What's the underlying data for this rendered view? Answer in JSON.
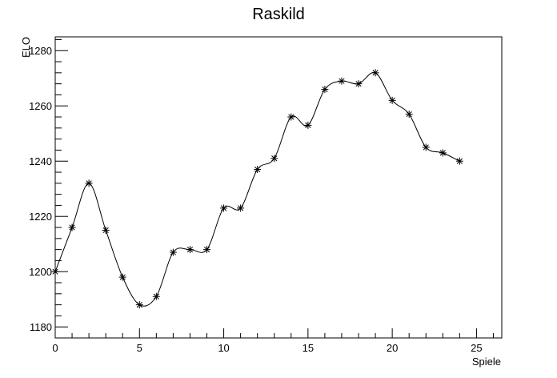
{
  "chart_data": {
    "type": "line",
    "title": "Raskild",
    "xlabel": "Spiele",
    "ylabel": "ELO",
    "xlim": [
      0,
      26.5
    ],
    "ylim": [
      1176,
      1285
    ],
    "x_ticks": [
      0,
      5,
      10,
      15,
      20,
      25
    ],
    "x_tick_labels": [
      "0",
      "5",
      "10",
      "15",
      "20",
      "25"
    ],
    "y_ticks": [
      1180,
      1200,
      1220,
      1240,
      1260,
      1280
    ],
    "y_tick_labels": [
      "1180",
      "1200",
      "1220",
      "1240",
      "1260",
      "1280"
    ],
    "marker": "asterisk",
    "line_style": "smooth",
    "grid": false,
    "series": [
      {
        "x": [
          0,
          1,
          2,
          3,
          4,
          5,
          6,
          7,
          8,
          9,
          10,
          11,
          12,
          13,
          14,
          15,
          16,
          17,
          18,
          19,
          20,
          21,
          22,
          23,
          24
        ],
        "y": [
          1200,
          1216,
          1232,
          1215,
          1198,
          1188,
          1191,
          1207,
          1208,
          1208,
          1223,
          1223,
          1237,
          1241,
          1256,
          1253,
          1266,
          1269,
          1268,
          1272,
          1262,
          1257,
          1245,
          1243,
          1240
        ]
      }
    ]
  }
}
